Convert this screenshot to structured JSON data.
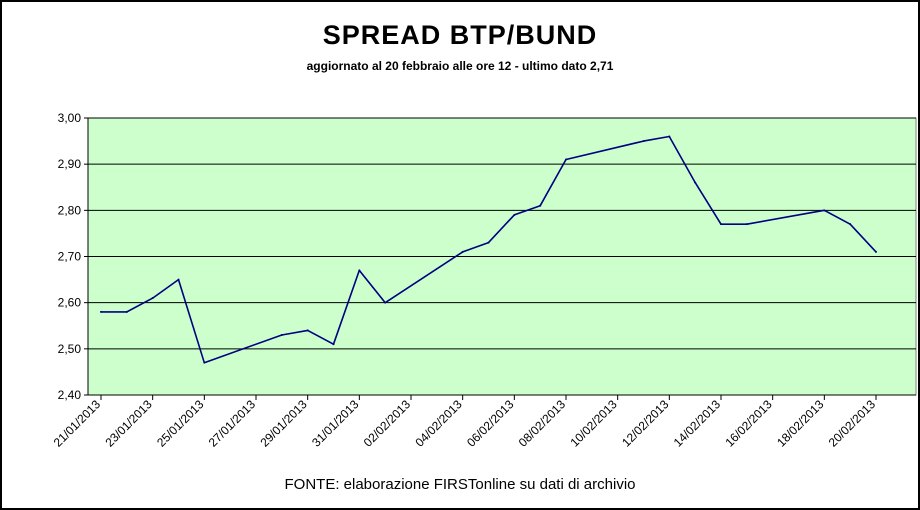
{
  "chart_data": {
    "type": "line",
    "title": "SPREAD  BTP/BUND",
    "subtitle": "aggiornato al 20 febbraio alle ore 12 - ultimo dato 2,71",
    "source": "FONTE: elaborazione FIRSTonline su dati di archivio",
    "ylim": [
      2.4,
      3.0
    ],
    "y_ticks": [
      "2,40",
      "2,50",
      "2,60",
      "2,70",
      "2,80",
      "2,90",
      "3,00"
    ],
    "x_tick_labels": [
      "21/01/2013",
      "23/01/2013",
      "25/01/2013",
      "27/01/2013",
      "29/01/2013",
      "31/01/2013",
      "02/02/2013",
      "04/02/2013",
      "06/02/2013",
      "08/02/2013",
      "10/02/2013",
      "12/02/2013",
      "14/02/2013",
      "16/02/2013",
      "18/02/2013",
      "20/02/2013"
    ],
    "x_start": "2013-01-21",
    "x_end": "2013-02-20",
    "series": [
      {
        "color": "#000080",
        "points": [
          {
            "x": "2013-01-21",
            "y": 2.58
          },
          {
            "x": "2013-01-22",
            "y": 2.58
          },
          {
            "x": "2013-01-23",
            "y": 2.61
          },
          {
            "x": "2013-01-24",
            "y": 2.65
          },
          {
            "x": "2013-01-25",
            "y": 2.47
          },
          {
            "x": "2013-01-28",
            "y": 2.53
          },
          {
            "x": "2013-01-29",
            "y": 2.54
          },
          {
            "x": "2013-01-30",
            "y": 2.51
          },
          {
            "x": "2013-01-31",
            "y": 2.67
          },
          {
            "x": "2013-02-01",
            "y": 2.6
          },
          {
            "x": "2013-02-04",
            "y": 2.71
          },
          {
            "x": "2013-02-05",
            "y": 2.73
          },
          {
            "x": "2013-02-06",
            "y": 2.79
          },
          {
            "x": "2013-02-07",
            "y": 2.81
          },
          {
            "x": "2013-02-08",
            "y": 2.91
          },
          {
            "x": "2013-02-11",
            "y": 2.95
          },
          {
            "x": "2013-02-12",
            "y": 2.96
          },
          {
            "x": "2013-02-13",
            "y": 2.86
          },
          {
            "x": "2013-02-14",
            "y": 2.77
          },
          {
            "x": "2013-02-15",
            "y": 2.77
          },
          {
            "x": "2013-02-18",
            "y": 2.8
          },
          {
            "x": "2013-02-19",
            "y": 2.77
          },
          {
            "x": "2013-02-20",
            "y": 2.71
          }
        ]
      }
    ],
    "grid": true,
    "plot_background": "#ccffcc",
    "grid_color": "#000000"
  }
}
